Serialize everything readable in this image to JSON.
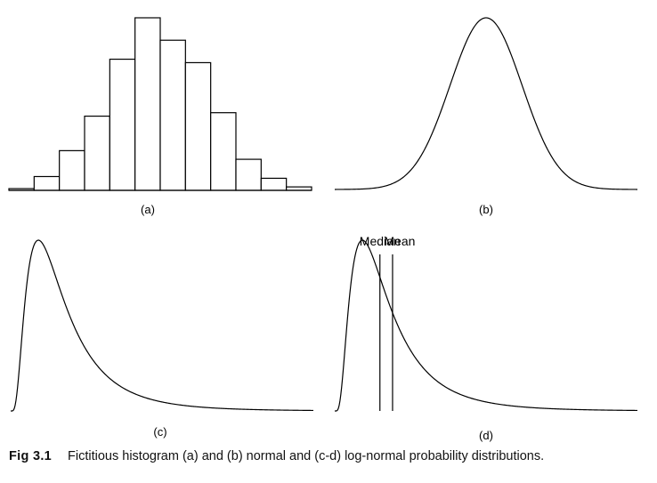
{
  "caption": {
    "number": "Fig 3.1",
    "text": "Fictitious histogram (a) and (b) normal and (c-d) log-normal probability distributions."
  },
  "chart_data": [
    {
      "panel": "a",
      "label": "(a)",
      "type": "bar",
      "values": [
        0.1,
        0.8,
        2.3,
        4.3,
        7.6,
        10.0,
        8.7,
        7.4,
        4.5,
        1.8,
        0.7,
        0.2
      ],
      "ylim": [
        0,
        10
      ]
    },
    {
      "panel": "b",
      "label": "(b)",
      "type": "line",
      "distribution": "normal",
      "mean": 0,
      "sd": 1,
      "xlim": [
        -4.2,
        4.2
      ]
    },
    {
      "panel": "c",
      "label": "(c)",
      "type": "line",
      "distribution": "log-normal",
      "mu": 0,
      "sigma": 0.7,
      "xlim": [
        0,
        6.7
      ]
    },
    {
      "panel": "d",
      "label": "(d)",
      "type": "line",
      "distribution": "log-normal",
      "mu": 0,
      "sigma": 0.7,
      "xlim": [
        0,
        6.7
      ],
      "annotations": [
        {
          "label": "Median",
          "x": 1.0
        },
        {
          "label": "Mean",
          "x": 1.28
        }
      ]
    }
  ]
}
